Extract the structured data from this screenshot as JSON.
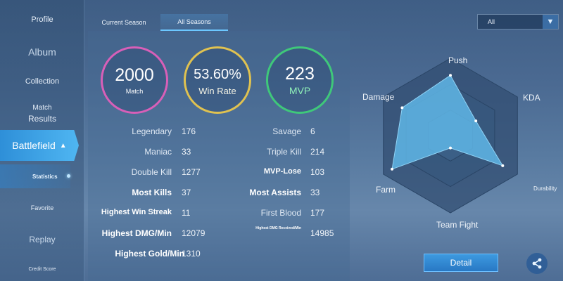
{
  "sidebar": {
    "profile": "Profile",
    "album": "Album",
    "collection": "Collection",
    "match_results_line1": "Match",
    "match_results_line2": "Results",
    "battlefield": "Battlefield",
    "statistics": "Statistics",
    "favorite": "Favorite",
    "replay": "Replay",
    "credit_score": "Credit Score"
  },
  "tabs": [
    {
      "label": "Current Season",
      "active": false
    },
    {
      "label": "All Seasons",
      "active": true
    }
  ],
  "filter": {
    "selected": "All"
  },
  "summary": {
    "match": {
      "value": "2000",
      "label": "Match",
      "color": "#d85fb8"
    },
    "win_rate": {
      "value": "53.60%",
      "label": "Win Rate",
      "color": "#e0c250"
    },
    "mvp": {
      "value": "223",
      "label": "MVP",
      "color": "#3fc87a"
    }
  },
  "stats_left": [
    {
      "label": "Legendary",
      "value": "176"
    },
    {
      "label": "Maniac",
      "value": "33"
    },
    {
      "label": "Double Kill",
      "value": "1277"
    },
    {
      "label": "Most Kills",
      "value": "37"
    },
    {
      "label": "Highest Win Streak",
      "value": "11"
    },
    {
      "label": "Highest DMG/Min",
      "value": "12079"
    },
    {
      "label": "Highest Gold/Min",
      "value": "1310"
    }
  ],
  "stats_right": [
    {
      "label": "Savage",
      "value": "6"
    },
    {
      "label": "Triple Kill",
      "value": "214"
    },
    {
      "label": "MVP-Lose",
      "value": "103"
    },
    {
      "label": "Most Assists",
      "value": "33"
    },
    {
      "label": "First Blood",
      "value": "177"
    },
    {
      "label": "Highest DMG Received/Min",
      "value": "14985"
    }
  ],
  "radar": {
    "axes": [
      {
        "label": "Push",
        "value": 0.78
      },
      {
        "label": "KDA",
        "value": 0.38
      },
      {
        "label": "Durability",
        "value": 0.78
      },
      {
        "label": "Team Fight",
        "value": 0.16
      },
      {
        "label": "Farm",
        "value": 0.87
      },
      {
        "label": "Damage",
        "value": 0.72
      }
    ],
    "fill_color": "#5fb6e6"
  },
  "actions": {
    "detail": "Detail",
    "share_icon": "share-icon"
  }
}
